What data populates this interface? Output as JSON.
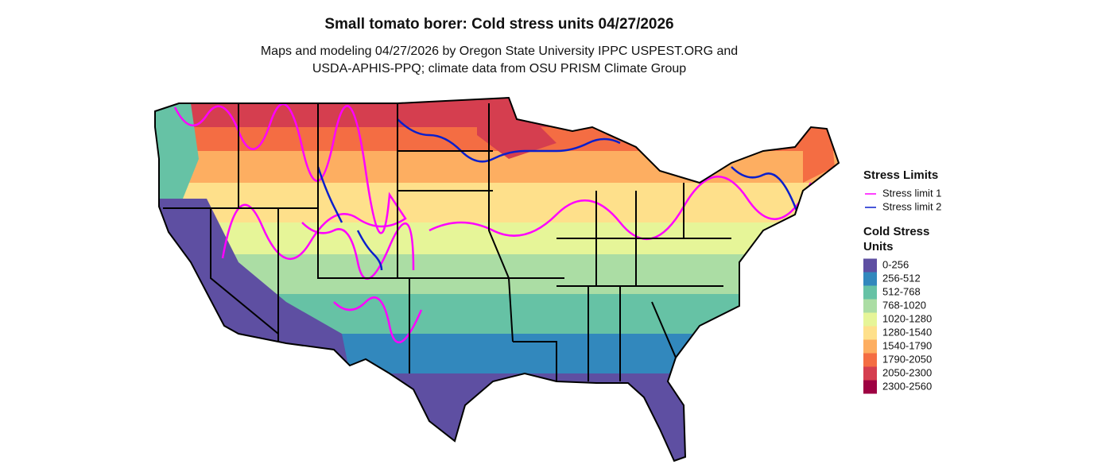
{
  "title": "Small tomato borer: Cold stress units 04/27/2026",
  "subtitle": [
    "Maps and modeling 04/27/2026 by Oregon State University IPPC USPEST.ORG and",
    "USDA-APHIS-PPQ; climate data from OSU PRISM Climate Group"
  ],
  "legend": {
    "stress_title": "Stress Limits",
    "stress_items": [
      {
        "label": "Stress limit 1",
        "color": "#ff00ff"
      },
      {
        "label": "Stress limit 2",
        "color": "#0a1fcc"
      }
    ],
    "units_title": [
      "Cold Stress",
      "Units"
    ],
    "units_items": [
      {
        "label": "0-256",
        "color": "#5e4fa2"
      },
      {
        "label": "256-512",
        "color": "#3288bd"
      },
      {
        "label": "512-768",
        "color": "#66c2a5"
      },
      {
        "label": "768-1020",
        "color": "#abdda4"
      },
      {
        "label": "1020-1280",
        "color": "#e6f598"
      },
      {
        "label": "1280-1540",
        "color": "#fee08b"
      },
      {
        "label": "1540-1790",
        "color": "#fdae61"
      },
      {
        "label": "1790-2050",
        "color": "#f46d43"
      },
      {
        "label": "2050-2300",
        "color": "#d53e4f"
      },
      {
        "label": "2300-2560",
        "color": "#9e0142"
      }
    ]
  }
}
